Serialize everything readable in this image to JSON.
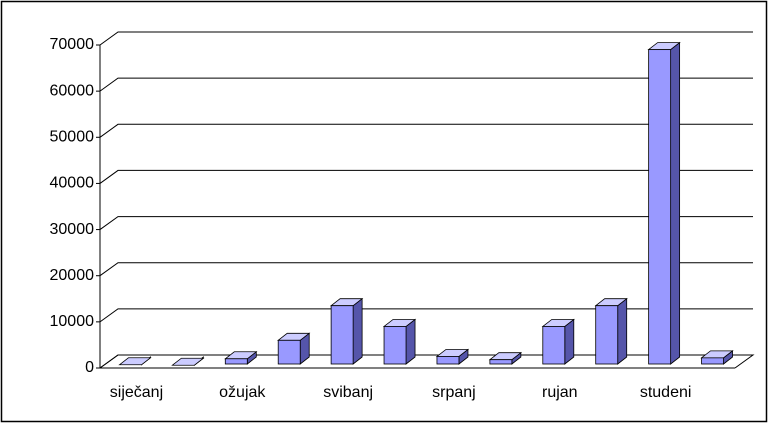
{
  "chart_data": {
    "type": "bar3d",
    "categories": [
      "siječanj",
      null,
      "ožujak",
      null,
      "svibanj",
      null,
      "srpanj",
      null,
      "rujan",
      null,
      "studeni",
      null
    ],
    "values": [
      700,
      600,
      2000,
      6000,
      13500,
      9000,
      2500,
      1800,
      9000,
      13500,
      69000,
      2200
    ],
    "color": "#9999ff",
    "ylim": [
      0,
      70000
    ],
    "yticks": [
      0,
      10000,
      20000,
      30000,
      40000,
      50000,
      60000,
      70000
    ],
    "grid": true
  }
}
